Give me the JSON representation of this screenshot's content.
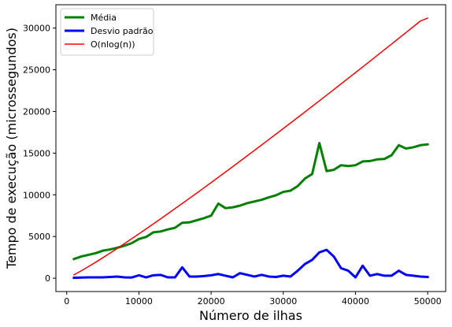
{
  "chart_data": {
    "type": "line",
    "xlabel": "Número de ilhas",
    "ylabel": "Tempo de execução (microssegundos)",
    "xlim": [
      -1500,
      52500
    ],
    "ylim": [
      -1600,
      32800
    ],
    "x_ticks": [
      0,
      10000,
      20000,
      30000,
      40000,
      50000
    ],
    "x_tick_labels": [
      "0",
      "10000",
      "20000",
      "30000",
      "40000",
      "50000"
    ],
    "y_ticks": [
      0,
      5000,
      10000,
      15000,
      20000,
      25000,
      30000
    ],
    "y_tick_labels": [
      "0",
      "5000",
      "10000",
      "15000",
      "20000",
      "25000",
      "30000"
    ],
    "grid": false,
    "legend_position": "top-left",
    "series": [
      {
        "name": "Média",
        "color": "#008000",
        "line_width": 3,
        "x": [
          1000,
          2000,
          3000,
          4000,
          5000,
          6000,
          7000,
          8000,
          9000,
          10000,
          11000,
          12000,
          13000,
          14000,
          15000,
          16000,
          17000,
          18000,
          19000,
          20000,
          21000,
          22000,
          23000,
          24000,
          25000,
          26000,
          27000,
          28000,
          29000,
          30000,
          31000,
          32000,
          33000,
          34000,
          35000,
          36000,
          37000,
          38000,
          39000,
          40000,
          41000,
          42000,
          43000,
          44000,
          45000,
          46000,
          47000,
          48000,
          49000,
          50000
        ],
        "values": [
          2300,
          2600,
          2800,
          3000,
          3300,
          3450,
          3650,
          3900,
          4200,
          4700,
          4950,
          5500,
          5600,
          5850,
          6050,
          6650,
          6700,
          6950,
          7200,
          7500,
          8950,
          8400,
          8500,
          8700,
          9000,
          9200,
          9400,
          9700,
          9950,
          10350,
          10500,
          11050,
          11950,
          12500,
          16200,
          12850,
          13000,
          13550,
          13450,
          13550,
          14000,
          14050,
          14250,
          14300,
          14750,
          15950,
          15550,
          15700,
          15950,
          16050
        ]
      },
      {
        "name": "Desvio padrão",
        "color": "#0000ff",
        "line_width": 3,
        "x": [
          1000,
          2000,
          3000,
          4000,
          5000,
          6000,
          7000,
          8000,
          9000,
          10000,
          11000,
          12000,
          13000,
          14000,
          15000,
          16000,
          17000,
          18000,
          19000,
          20000,
          21000,
          22000,
          23000,
          24000,
          25000,
          26000,
          27000,
          28000,
          29000,
          30000,
          31000,
          32000,
          33000,
          34000,
          35000,
          36000,
          37000,
          38000,
          39000,
          40000,
          41000,
          42000,
          43000,
          44000,
          45000,
          46000,
          47000,
          48000,
          49000,
          50000
        ],
        "values": [
          50,
          80,
          100,
          100,
          100,
          150,
          200,
          100,
          80,
          350,
          100,
          350,
          400,
          100,
          100,
          1300,
          200,
          200,
          250,
          350,
          500,
          300,
          100,
          600,
          400,
          200,
          400,
          200,
          150,
          300,
          200,
          900,
          1700,
          2200,
          3100,
          3400,
          2600,
          1200,
          900,
          100,
          1500,
          300,
          500,
          300,
          300,
          900,
          400,
          300,
          200,
          150
        ]
      },
      {
        "name": "O(nlog(n))",
        "color": "#ff0000",
        "line_width": 1.5,
        "x": [
          1000,
          2000,
          3000,
          4000,
          5000,
          6000,
          7000,
          8000,
          9000,
          10000,
          11000,
          12000,
          13000,
          14000,
          15000,
          16000,
          17000,
          18000,
          19000,
          20000,
          21000,
          22000,
          23000,
          24000,
          25000,
          26000,
          27000,
          28000,
          29000,
          30000,
          31000,
          32000,
          33000,
          34000,
          35000,
          36000,
          37000,
          38000,
          39000,
          40000,
          41000,
          42000,
          43000,
          44000,
          45000,
          46000,
          47000,
          48000,
          49000,
          50000
        ],
        "values": [
          400,
          879,
          1387,
          1914,
          2457,
          3012,
          3578,
          4152,
          4734,
          5322,
          5917,
          6516,
          7120,
          7729,
          8343,
          8960,
          9581,
          10206,
          10835,
          11467,
          12103,
          12741,
          13383,
          14028,
          14676,
          15325,
          15978,
          16632,
          17290,
          17949,
          18611,
          19275,
          19941,
          20608,
          21279,
          21951,
          22625,
          23301,
          23979,
          24658,
          25339,
          26022,
          26707,
          27393,
          28081,
          28771,
          29462,
          30155,
          30849,
          31200
        ]
      }
    ]
  }
}
